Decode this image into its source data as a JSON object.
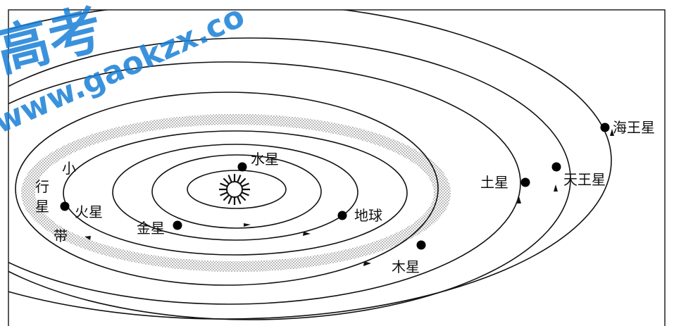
{
  "diagram": {
    "planets": {
      "mercury": "水星",
      "venus": "金星",
      "earth": "地球",
      "mars": "火星",
      "jupiter": "木星",
      "saturn": "土星",
      "uranus": "天王星",
      "neptune": "海王星"
    },
    "asteroid_belt": [
      "小",
      "行",
      "星",
      "带"
    ]
  },
  "watermark": {
    "brand": "高考",
    "url": "www.gaokzx.co"
  },
  "colors": {
    "line": "#111111",
    "belt": "#9a9a9a",
    "watermark": "#1a7fd6"
  }
}
